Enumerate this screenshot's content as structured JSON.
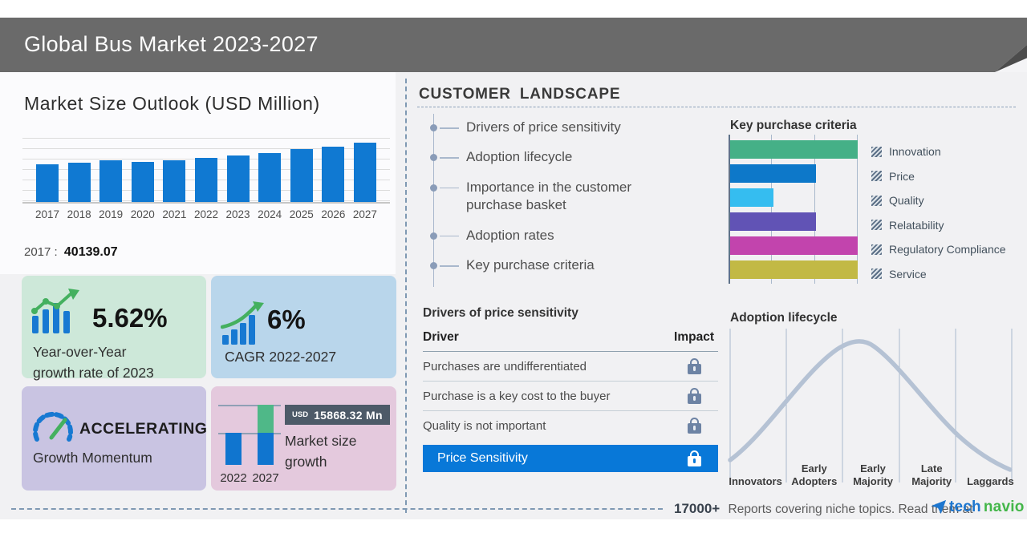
{
  "title_bar": {
    "title": "Global Bus Market 2023-2027"
  },
  "palette": {
    "titlebar_gray": "#6a6a6a",
    "bar_blue": "#1079d2",
    "banner_blue": "#0878d8",
    "brand_blue": "#1d76cf",
    "brand_green": "#43b649",
    "dash_blue": "#7f99b3"
  },
  "market_size": {
    "heading": "Market Size Outlook (USD Million)",
    "callout_year": "2017",
    "callout_sep": ":",
    "callout_value": "40139.07"
  },
  "stats": {
    "yoy": {
      "value": "5.62%",
      "lines": [
        "Year-over-Year",
        "growth rate of 2023"
      ]
    },
    "cagr": {
      "value": "6%",
      "label": "CAGR 2022-2027"
    },
    "momentum": {
      "value": "ACCELERATING",
      "label": "Growth Momentum"
    },
    "growth": {
      "currency": "USD",
      "amount": "15868.32 Mn",
      "label_lines": [
        "Market size",
        "growth"
      ],
      "years": [
        "2022",
        "2027"
      ]
    }
  },
  "customer_landscape": {
    "heading": "CUSTOMER LANDSCAPE",
    "items": [
      "Drivers of price sensitivity",
      "Adoption lifecycle",
      "Importance in the customer purchase basket",
      "Adoption rates",
      "Key purchase criteria"
    ]
  },
  "price_sensitivity": {
    "heading": "Drivers of price sensitivity",
    "col_driver": "Driver",
    "col_impact": "Impact",
    "rows": [
      "Purchases are undifferentiated",
      "Purchase is a key cost to the buyer",
      "Quality is not important"
    ],
    "highlight": "Price Sensitivity"
  },
  "footer": {
    "count": "17000+",
    "message": "Reports covering niche topics. Read them at",
    "brand_part1": "tech",
    "brand_part2": "navio",
    "brand_tm": "™"
  },
  "chart_data": [
    {
      "id": "market_size_outlook",
      "type": "bar",
      "title": "Market Size Outlook (USD Million)",
      "categories": [
        "2017",
        "2018",
        "2019",
        "2020",
        "2021",
        "2022",
        "2023",
        "2024",
        "2025",
        "2026",
        "2027"
      ],
      "values": [
        40139.07,
        41850,
        44150,
        42100,
        44150,
        46920,
        49557,
        52100,
        55770,
        58670,
        62788
      ],
      "ylim": [
        0,
        65000
      ],
      "grid": "horizontal",
      "bar_color": "#1079d2",
      "annotation": "2017 : 40139.07",
      "note": "only 2017 value labeled on screen; other values estimated from bar heights"
    },
    {
      "id": "key_purchase_criteria",
      "type": "bar",
      "orientation": "horizontal",
      "title": "Key purchase criteria",
      "categories": [
        "Innovation",
        "Price",
        "Quality",
        "Relatability",
        "Regulatory Compliance",
        "Service"
      ],
      "values": [
        100,
        67,
        34,
        67,
        100,
        100
      ],
      "xlim": [
        0,
        100
      ],
      "colors": [
        "#45b087",
        "#0d78c9",
        "#35bdf0",
        "#6153b5",
        "#c244ad",
        "#c2b945"
      ],
      "legend_position": "right",
      "grid": "vertical"
    },
    {
      "id": "market_size_growth",
      "type": "bar",
      "title": "Market size growth",
      "categories": [
        "2022",
        "2027"
      ],
      "values": [
        46920,
        62788
      ],
      "annotation": "USD 15868.32 Mn",
      "segment_colors": [
        "#1075cf",
        "#4fb888"
      ]
    },
    {
      "id": "adoption_lifecycle",
      "type": "area",
      "title": "Adoption lifecycle",
      "shape": "bell-curve",
      "categories": [
        "Innovators",
        "Early Adopters",
        "Early Majority",
        "Late Majority",
        "Laggards"
      ],
      "line_color": "#b5c2d4"
    }
  ]
}
